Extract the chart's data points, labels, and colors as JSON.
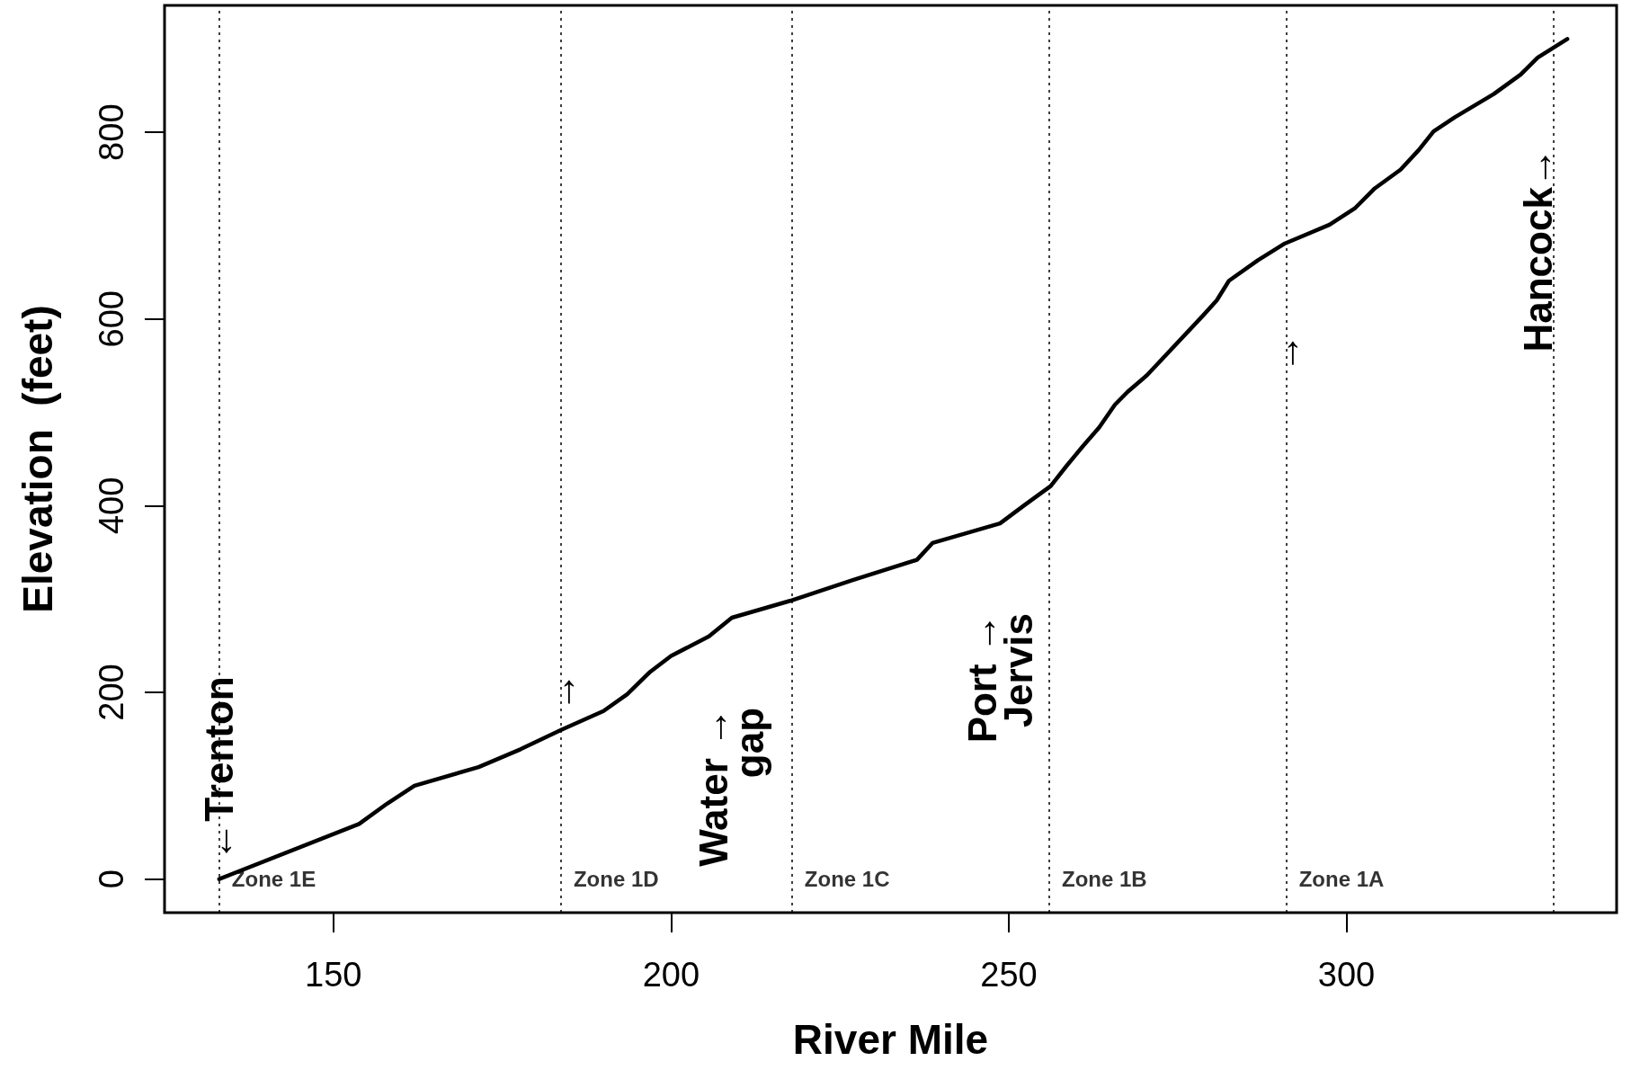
{
  "chart_data": {
    "type": "line",
    "xlabel": "River Mile",
    "ylabel": "Elevation  (feet)",
    "x": [
      133.1,
      153.8,
      158,
      162,
      171.5,
      177.7,
      183.8,
      190,
      193.5,
      196.9,
      200,
      205.6,
      209,
      217.6,
      226.8,
      236.4,
      238.7,
      248.7,
      252.4,
      256.2,
      258.6,
      261,
      263.4,
      265.7,
      267.6,
      270.5,
      278.8,
      280.8,
      282.6,
      286.9,
      290.9,
      297.5,
      301.3,
      304.2,
      308,
      310.7,
      312.9,
      316,
      321.8,
      325.8,
      328.3,
      332.7
    ],
    "values": [
      0,
      59,
      81,
      100,
      120,
      139,
      160,
      180,
      198,
      222,
      239,
      260,
      280,
      298,
      320,
      342,
      360,
      381,
      401,
      421,
      443,
      464,
      484,
      508,
      522,
      540,
      604,
      620,
      641,
      663,
      681,
      701,
      719,
      740,
      760,
      781,
      801,
      816,
      841,
      862,
      880,
      900
    ],
    "color": "#000000",
    "xlim": [
      125,
      340
    ],
    "xticks": [
      150,
      200,
      250,
      300
    ],
    "ylim": [
      -36,
      936
    ],
    "yticks": [
      0,
      200,
      400,
      600,
      800
    ],
    "grid": false,
    "marker": "none",
    "line_style": "solid",
    "ref_lines": [
      {
        "axis": "x",
        "value": 133.1,
        "label": "Zone 1E",
        "line_style": "dotted"
      },
      {
        "axis": "x",
        "value": 183.7,
        "label": "Zone 1D",
        "line_style": "dotted"
      },
      {
        "axis": "x",
        "value": 217.9,
        "label": "Zone 1C",
        "line_style": "dotted"
      },
      {
        "axis": "x",
        "value": 256,
        "label": "Zone 1B",
        "line_style": "dotted"
      },
      {
        "axis": "x",
        "value": 291.1,
        "label": "Zone 1A",
        "line_style": "dotted"
      },
      {
        "axis": "x",
        "value": 330.6,
        "line_style": "dotted"
      }
    ],
    "annotations": [
      {
        "text": "←Trenton",
        "x": 133.1,
        "y": 0
      },
      {
        "text": "→",
        "x": 183.8,
        "y": 160
      },
      {
        "text": "Water →\ngap",
        "x": 209,
        "y": 280
      },
      {
        "text": "Port →\nJervis",
        "x": 248.7,
        "y": 381
      },
      {
        "text": "→",
        "x": 290.9,
        "y": 681
      },
      {
        "text": "Hancock→",
        "x": 328.3,
        "y": 880
      }
    ]
  }
}
